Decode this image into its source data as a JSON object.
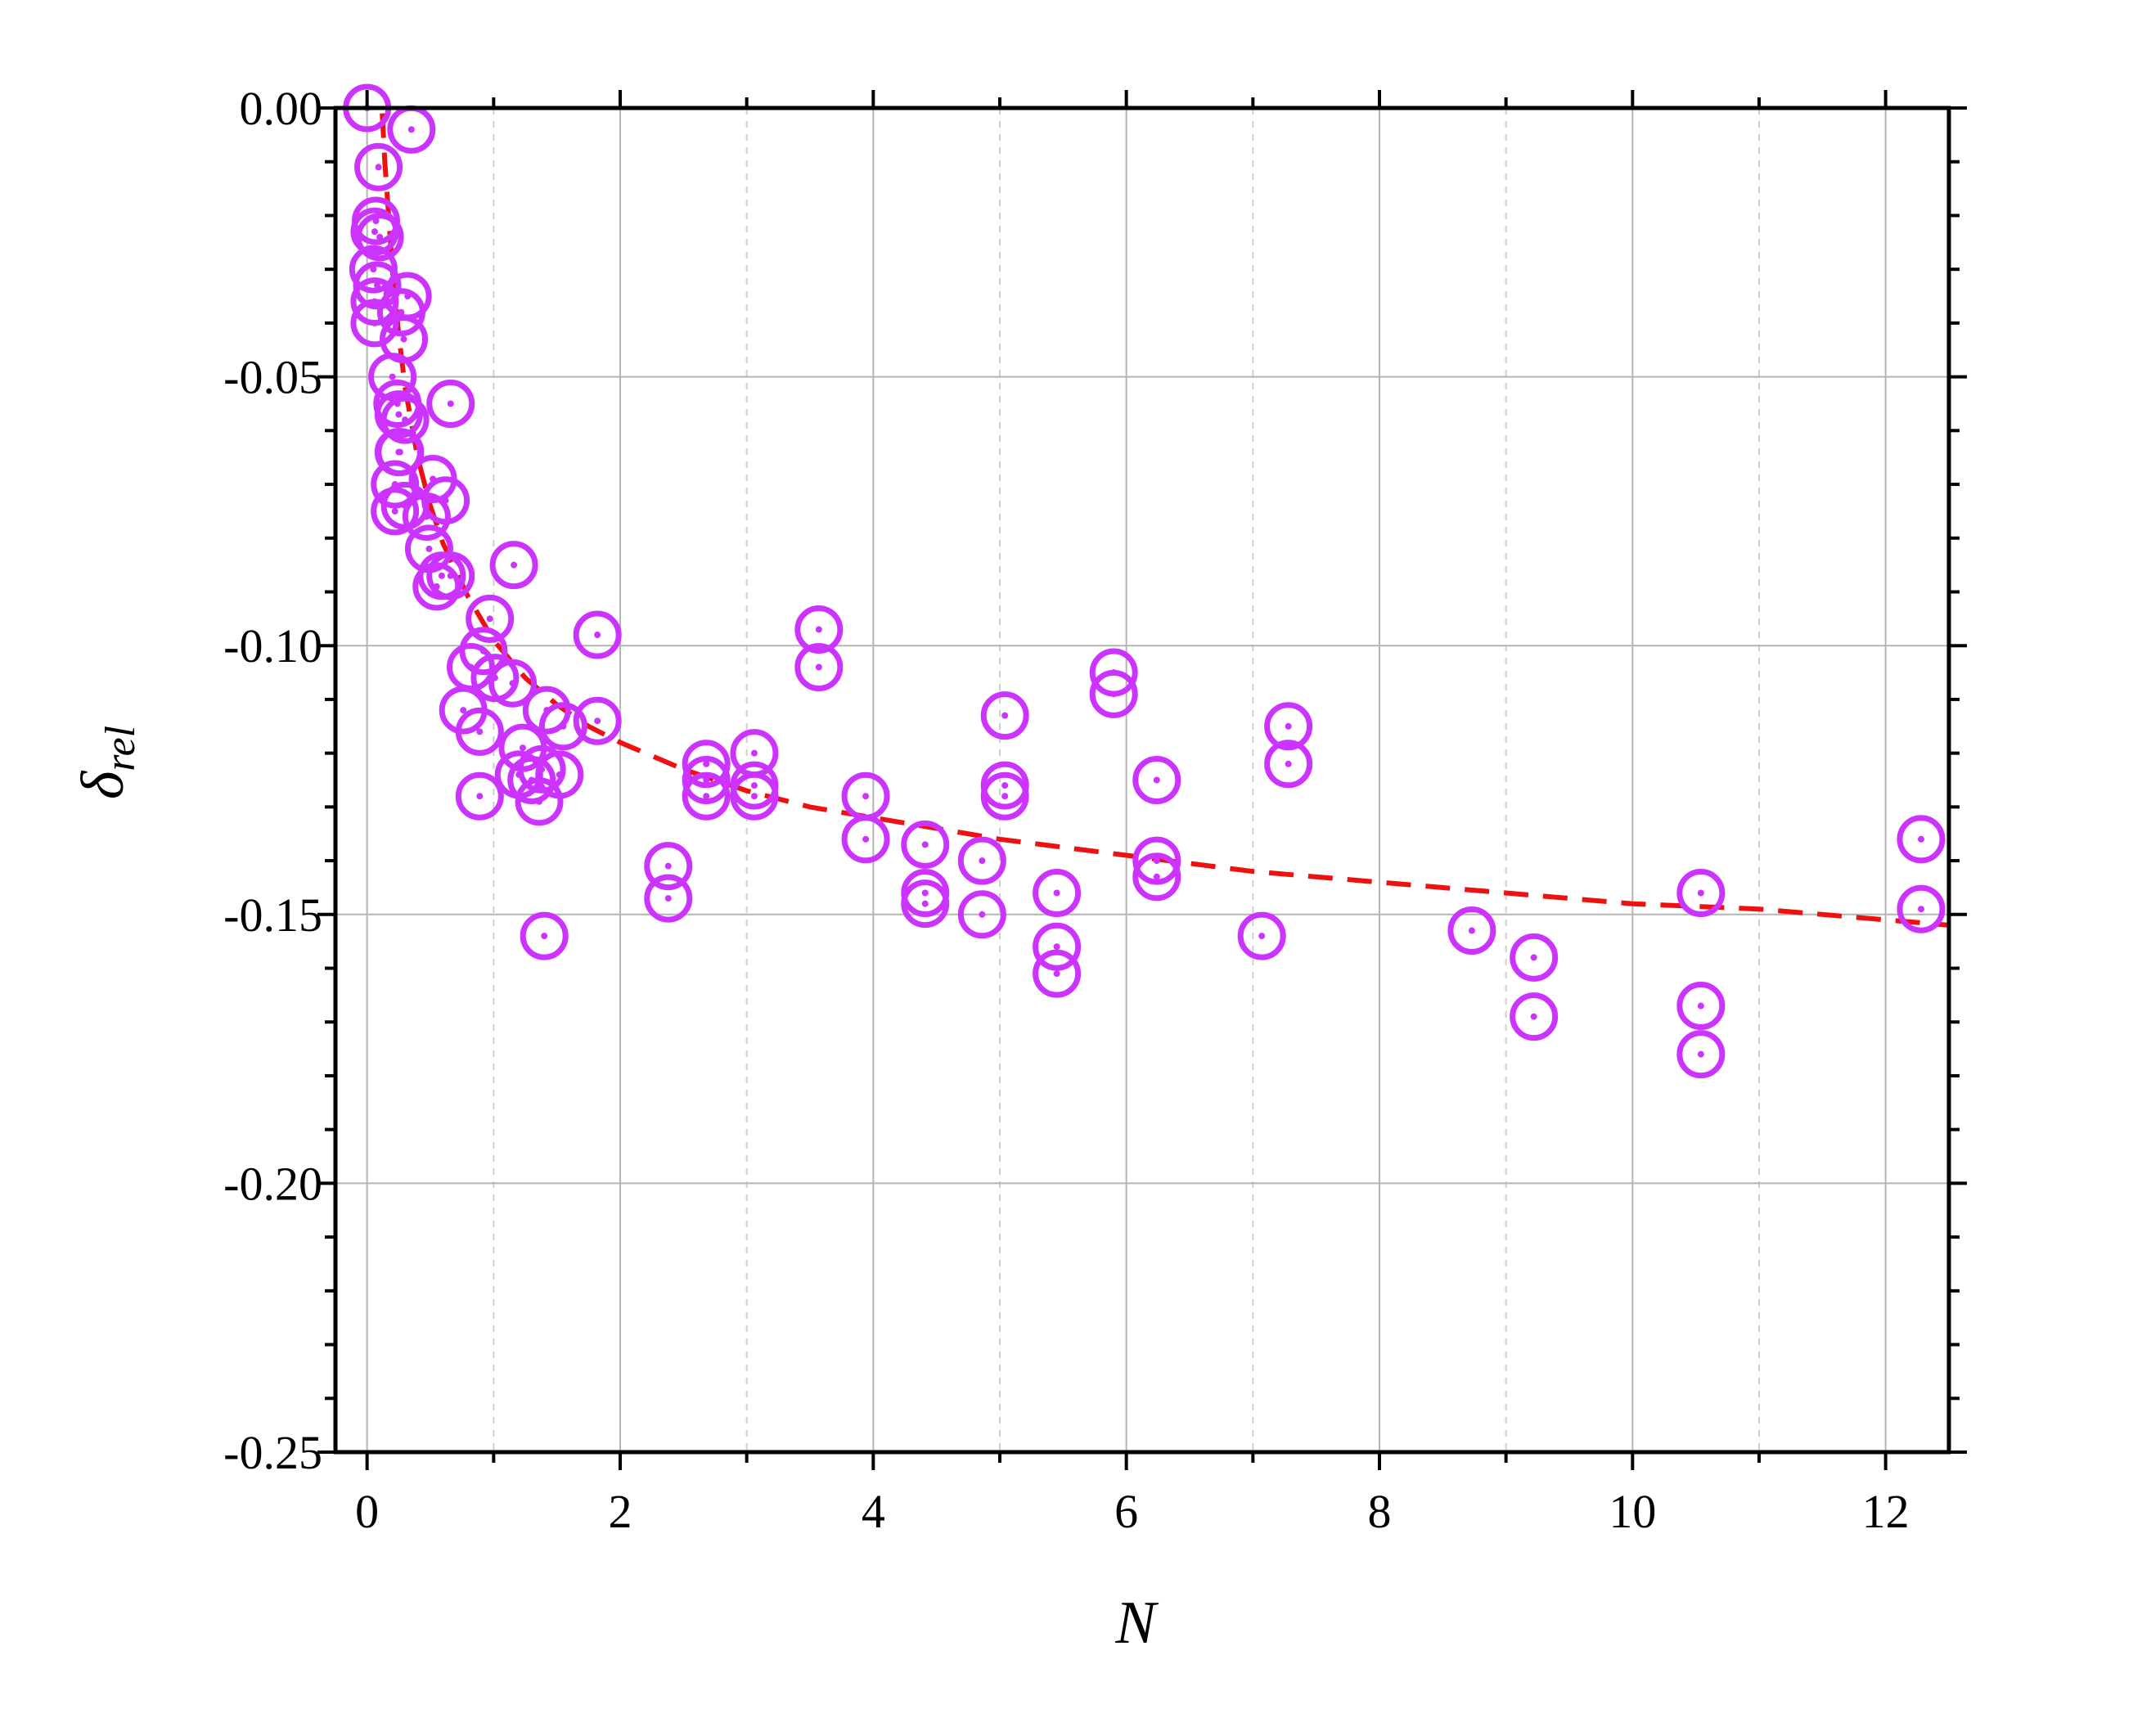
{
  "chart_data": {
    "type": "scatter",
    "xlabel": "N",
    "ylabel": {
      "symbol": "δ",
      "subscript": "rel"
    },
    "xlim": [
      -0.25,
      12.5
    ],
    "ylim": [
      -0.25,
      0.0
    ],
    "xticks": [
      0,
      2,
      4,
      6,
      8,
      10,
      12
    ],
    "xtick_labels": [
      "0",
      "2",
      "4",
      "6",
      "8",
      "10",
      "12"
    ],
    "yticks": [
      0.0,
      -0.05,
      -0.1,
      -0.15,
      -0.2,
      -0.25
    ],
    "ytick_labels": [
      "0.00",
      "-0.05",
      "-0.10",
      "-0.15",
      "-0.20",
      "-0.25"
    ],
    "grid": {
      "major": true,
      "minor_x": true
    },
    "colors": {
      "points": "#cc33ff",
      "fit": "#ee1111",
      "grid": "#b4b4b4",
      "axis": "#000000"
    },
    "series": [
      {
        "marker": "circle-with-center-dot",
        "x": [
          0.0,
          0.35,
          0.09,
          0.07,
          0.06,
          0.1,
          0.05,
          0.08,
          0.06,
          0.32,
          0.27,
          0.29,
          0.06,
          0.2,
          0.66,
          0.24,
          0.25,
          0.3,
          0.26,
          0.22,
          0.52,
          0.3,
          0.62,
          0.47,
          0.22,
          0.25,
          0.97,
          1.16,
          0.49,
          0.66,
          0.59,
          0.55,
          1.82,
          0.92,
          0.82,
          1.01,
          0.76,
          0.89,
          1.15,
          1.23,
          1.3,
          1.38,
          1.42,
          1.55,
          1.2,
          1.52,
          1.36,
          0.89,
          1.4,
          2.38,
          2.38,
          2.68,
          2.68,
          2.68,
          3.06,
          3.06,
          3.06,
          3.57,
          3.57,
          3.94,
          3.94,
          4.41,
          4.41,
          4.41,
          4.86,
          4.86,
          5.04,
          5.04,
          5.04,
          5.45,
          5.45,
          5.45,
          5.9,
          5.9,
          6.24,
          6.24,
          6.24,
          7.07,
          7.28,
          7.28,
          8.73,
          9.22,
          9.22,
          10.54,
          10.54,
          10.54,
          12.28,
          12.28,
          1.82
        ],
        "y": [
          0.0,
          -0.004,
          -0.011,
          -0.021,
          -0.023,
          -0.024,
          -0.03,
          -0.033,
          -0.04,
          -0.035,
          -0.038,
          -0.043,
          -0.036,
          -0.05,
          -0.055,
          -0.055,
          -0.057,
          -0.058,
          -0.064,
          -0.07,
          -0.069,
          -0.074,
          -0.073,
          -0.076,
          -0.075,
          -0.064,
          -0.095,
          -0.085,
          -0.082,
          -0.087,
          -0.087,
          -0.089,
          -0.098,
          -0.101,
          -0.104,
          -0.106,
          -0.112,
          -0.116,
          -0.107,
          -0.119,
          -0.125,
          -0.123,
          -0.112,
          -0.115,
          -0.124,
          -0.124,
          -0.129,
          -0.128,
          -0.154,
          -0.141,
          -0.147,
          -0.122,
          -0.128,
          -0.125,
          -0.12,
          -0.126,
          -0.128,
          -0.097,
          -0.104,
          -0.128,
          -0.136,
          -0.137,
          -0.146,
          -0.148,
          -0.14,
          -0.15,
          -0.113,
          -0.126,
          -0.128,
          -0.146,
          -0.156,
          -0.161,
          -0.105,
          -0.109,
          -0.125,
          -0.14,
          -0.143,
          -0.154,
          -0.115,
          -0.122,
          -0.153,
          -0.158,
          -0.169,
          -0.146,
          -0.167,
          -0.176,
          -0.136,
          -0.149,
          -0.114
        ]
      }
    ],
    "fit_curve": {
      "style": "dashed",
      "x": [
        0.12,
        0.14,
        0.17,
        0.2,
        0.25,
        0.3,
        0.4,
        0.5,
        0.6,
        0.8,
        1.0,
        1.25,
        1.5,
        1.75,
        2.0,
        2.5,
        3.0,
        3.5,
        4.0,
        4.5,
        5.0,
        6.0,
        7.0,
        8.0,
        9.0,
        10.0,
        11.0,
        12.0,
        12.5
      ],
      "y": [
        -0.001,
        -0.01,
        -0.02,
        -0.03,
        -0.042,
        -0.052,
        -0.065,
        -0.074,
        -0.081,
        -0.091,
        -0.099,
        -0.106,
        -0.111,
        -0.115,
        -0.118,
        -0.123,
        -0.127,
        -0.13,
        -0.132,
        -0.134,
        -0.136,
        -0.139,
        -0.142,
        -0.144,
        -0.146,
        -0.148,
        -0.149,
        -0.151,
        -0.152
      ]
    }
  }
}
